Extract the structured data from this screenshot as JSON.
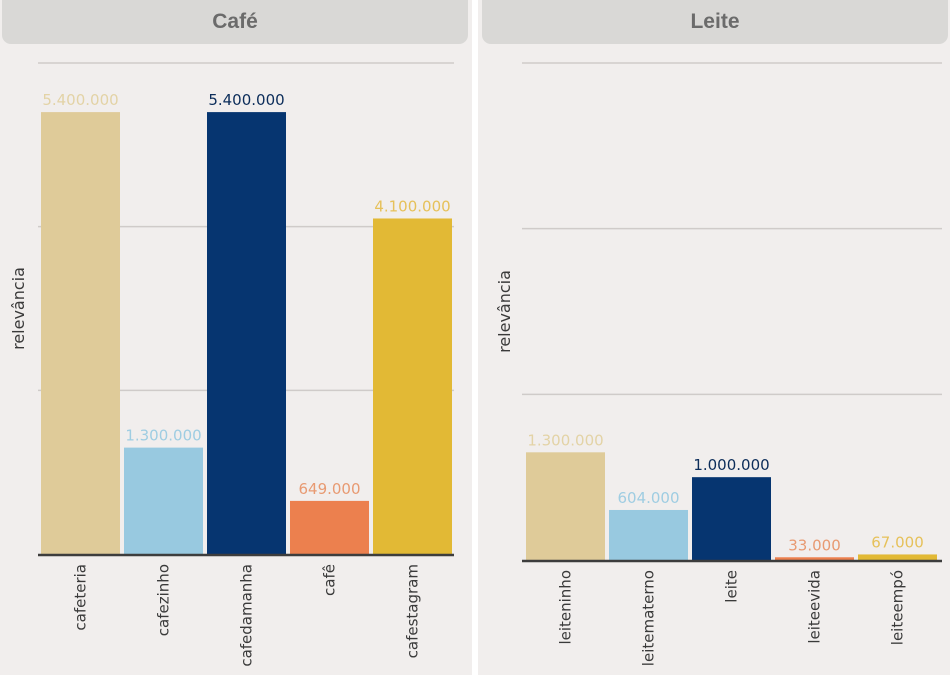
{
  "chart_data": [
    {
      "id": "cafe",
      "type": "bar",
      "title": "Café",
      "xlabel": "",
      "ylabel": "relevância",
      "ylim": [
        0,
        6000000
      ],
      "gridlines": [
        2000000,
        4000000,
        6000000
      ],
      "grid": true,
      "categories": [
        "cafeteria",
        "cafezinho",
        "cafedamanha",
        "cafê",
        "cafestagram"
      ],
      "values": [
        5400000,
        1300000,
        5400000,
        649000,
        4100000
      ],
      "value_labels": [
        "5.400.000",
        "1.300.000",
        "5.400.000",
        "649.000",
        "4.100.000"
      ],
      "colors": [
        "#dfcb99",
        "#98c9e0",
        "#063570",
        "#ec804e",
        "#e2b935"
      ],
      "label_colors": [
        "#e3d3a6",
        "#9fcde2",
        "#0c2d5a",
        "#e89a72",
        "#e6c15a"
      ]
    },
    {
      "id": "leite",
      "type": "bar",
      "title": "Leite",
      "xlabel": "",
      "ylabel": "relevância",
      "ylim": [
        0,
        6000000
      ],
      "gridlines": [
        2000000,
        4000000,
        6000000
      ],
      "grid": true,
      "categories": [
        "leiteninho",
        "leitematerno",
        "leite",
        "leiteevida",
        "leiteempó"
      ],
      "values": [
        1300000,
        604000,
        1000000,
        33000,
        67000
      ],
      "value_labels": [
        "1.300.000",
        "604.000",
        "1.000.000",
        "33.000",
        "67.000"
      ],
      "colors": [
        "#dfcb99",
        "#98c9e0",
        "#063570",
        "#ec804e",
        "#e2b935"
      ],
      "label_colors": [
        "#e3d3a6",
        "#9fcde2",
        "#0c2d5a",
        "#e89a72",
        "#e6c15a"
      ]
    }
  ]
}
